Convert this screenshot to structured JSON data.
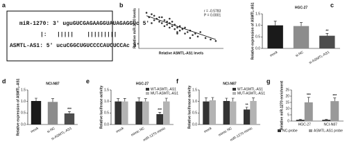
{
  "panel_a": {
    "label": "a",
    "mirna": "miR-1270: 3' uguGUCGAGAAGGUAUAGAGGUc 5'",
    "pairing": "|:   |||||    |||||||||",
    "lncrna": "ASMTL-AS1: 5' ucuCGGCUGUCCCCAUCUCCAc 3'"
  },
  "chart_data": [
    {
      "type": "scatter",
      "panel": "b",
      "xlabel": "Relative ASMTL-AS1 levels",
      "ylabel": "Relative miR-1270 levels",
      "annotations": [
        "r = -0.5783",
        "P = 0.0001"
      ],
      "color": "#333333",
      "x": [
        0.3,
        0.4,
        0.5,
        0.6,
        0.6,
        0.7,
        0.8,
        0.8,
        0.9,
        1.0,
        1.0,
        1.1,
        1.1,
        1.2,
        1.2,
        1.3,
        1.3,
        1.4,
        1.4,
        1.5,
        1.5,
        1.6,
        1.6,
        1.7,
        1.8,
        1.8,
        1.9,
        2.0,
        2.1,
        2.2,
        2.3,
        2.4,
        2.6,
        2.8,
        3.0,
        0.5,
        0.9,
        1.2,
        1.5,
        2.0
      ],
      "y": [
        2.9,
        2.6,
        2.8,
        2.4,
        2.7,
        2.5,
        2.3,
        2.6,
        2.2,
        2.4,
        2.0,
        2.3,
        2.1,
        1.9,
        2.2,
        2.0,
        2.3,
        1.8,
        2.1,
        1.9,
        1.6,
        2.0,
        1.7,
        1.8,
        1.5,
        1.9,
        1.6,
        1.7,
        1.4,
        1.5,
        1.3,
        1.6,
        1.2,
        1.1,
        1.0,
        2.2,
        2.6,
        2.5,
        1.5,
        1.2
      ],
      "fit": {
        "x": [
          0.3,
          3.0
        ],
        "y": [
          2.7,
          1.1
        ]
      },
      "xlim": [
        0,
        3.3
      ],
      "ylim": [
        0.5,
        3.2
      ]
    },
    {
      "type": "bar",
      "panel": "c",
      "title": "HGC-27",
      "ylabel": "Relative expression of ASMTL-AS1",
      "categories": [
        "mock",
        "si-NC",
        "si-ASMTL-AS1"
      ],
      "values": [
        1.0,
        0.97,
        0.55
      ],
      "errors": [
        0.18,
        0.15,
        0.1
      ],
      "colors": [
        "#1a1a1a",
        "#8c8c8c",
        "#4d4d4d"
      ],
      "significance": [
        null,
        null,
        "**"
      ],
      "ylim": [
        0,
        1.5
      ],
      "yticks": [
        {
          "value": 0,
          "label": "0.0"
        },
        0.5,
        {
          "value": 1,
          "label": "1.0"
        },
        1.5
      ]
    },
    {
      "type": "bar",
      "panel": "d",
      "title": "NCI-N87",
      "ylabel": "Relative expression of ASMTL-AS1",
      "categories": [
        "mock",
        "si-NC",
        "si-ASMTL-AS1"
      ],
      "values": [
        1.02,
        0.98,
        0.48
      ],
      "errors": [
        0.12,
        0.14,
        0.08
      ],
      "colors": [
        "#1a1a1a",
        "#8c8c8c",
        "#4d4d4d"
      ],
      "significance": [
        null,
        null,
        "***"
      ],
      "ylim": [
        0,
        1.5
      ],
      "yticks": [
        {
          "value": 0,
          "label": "0.0"
        },
        0.5,
        {
          "value": 1,
          "label": "1.0"
        },
        1.5
      ]
    },
    {
      "type": "bar",
      "panel": "e",
      "title": "HGC-27",
      "ylabel": "Relative luciferase activity",
      "categories": [
        "mock",
        "mimic NC",
        "miR-1270 mimic"
      ],
      "series": [
        {
          "name": "WT-ASMTL-AS1",
          "color": "#333333",
          "values": [
            1.0,
            1.0,
            0.45
          ],
          "errors": [
            0.12,
            0.15,
            0.08
          ],
          "significance": [
            null,
            null,
            "***"
          ]
        },
        {
          "name": "MUT-ASMTL-AS1",
          "color": "#b3b3b3",
          "values": [
            1.0,
            1.0,
            1.0
          ],
          "errors": [
            0.13,
            0.12,
            0.14
          ],
          "significance": [
            null,
            null,
            null
          ]
        }
      ],
      "ylim": [
        0,
        1.5
      ],
      "yticks": [
        {
          "value": 0,
          "label": "0.0"
        },
        0.5,
        {
          "value": 1,
          "label": "1.0"
        },
        1.5
      ]
    },
    {
      "type": "bar",
      "panel": "f",
      "title": "NCI-N87",
      "ylabel": "Relative luciferase activity",
      "categories": [
        "mock",
        "mimic NC",
        "miR-1270 mimic"
      ],
      "series": [
        {
          "name": "WT-ASMTL-AS1",
          "color": "#333333",
          "values": [
            1.0,
            1.02,
            0.65
          ],
          "errors": [
            0.15,
            0.12,
            0.1
          ],
          "significance": [
            null,
            null,
            "**"
          ]
        },
        {
          "name": "MUT-ASMTL-AS1",
          "color": "#b3b3b3",
          "values": [
            1.05,
            1.0,
            1.02
          ],
          "errors": [
            0.12,
            0.14,
            0.13
          ],
          "significance": [
            null,
            null,
            null
          ]
        }
      ],
      "ylim": [
        0,
        1.5
      ],
      "yticks": [
        {
          "value": 0,
          "label": "0.0"
        },
        0.5,
        {
          "value": 1,
          "label": "1.0"
        },
        1.5
      ]
    },
    {
      "type": "bar",
      "panel": "g",
      "ylabel": "Relative miR-1270 enrichment",
      "categories": [
        "HGC-27",
        "NCI-N87"
      ],
      "series": [
        {
          "name": "NC-probe",
          "color": "#333333",
          "values": [
            1,
            1
          ],
          "errors": [
            0.3,
            0.3
          ],
          "significance": [
            null,
            null
          ]
        },
        {
          "name": "ASMTL-AS1 probe",
          "color": "#999999",
          "values": [
            15,
            16
          ],
          "errors": [
            4,
            2.5
          ],
          "significance": [
            "***",
            "***"
          ]
        }
      ],
      "ylim": [
        0,
        25
      ],
      "yticks": [
        0,
        5,
        10,
        15,
        20,
        25
      ]
    }
  ]
}
